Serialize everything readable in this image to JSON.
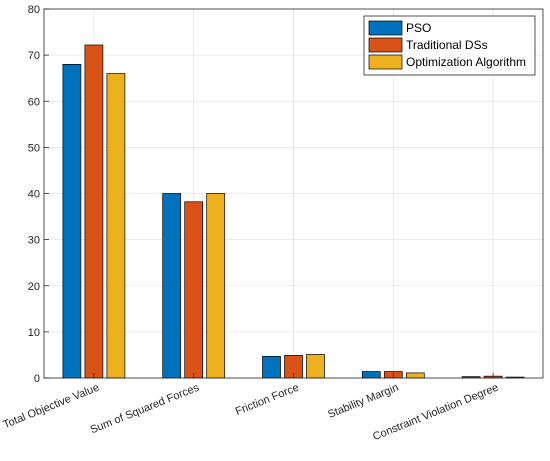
{
  "chart_data": {
    "type": "bar",
    "categories": [
      "Total Objective Value",
      "Sum of Squared Forces",
      "Friction Force",
      "Stability Margin",
      "Constraint Violation Degree"
    ],
    "series": [
      {
        "name": "PSO",
        "color": "#0072bd",
        "values": [
          68,
          40,
          4.7,
          1.4,
          0.3
        ]
      },
      {
        "name": "Traditional DSs",
        "color": "#d95319",
        "values": [
          72.2,
          38.2,
          4.9,
          1.4,
          0.4
        ]
      },
      {
        "name": "Optimization Algorithm",
        "color": "#edb120",
        "values": [
          66,
          40,
          5.1,
          1.1,
          0.2
        ]
      }
    ],
    "ylim": [
      0,
      80
    ],
    "yticks": [
      0,
      10,
      20,
      30,
      40,
      50,
      60,
      70,
      80
    ],
    "ytick_labels": [
      "0",
      "10",
      "20",
      "30",
      "40",
      "50",
      "60",
      "70",
      "80"
    ],
    "grid": true,
    "legend_position": "top-right",
    "title": "",
    "xlabel": "",
    "ylabel": ""
  }
}
